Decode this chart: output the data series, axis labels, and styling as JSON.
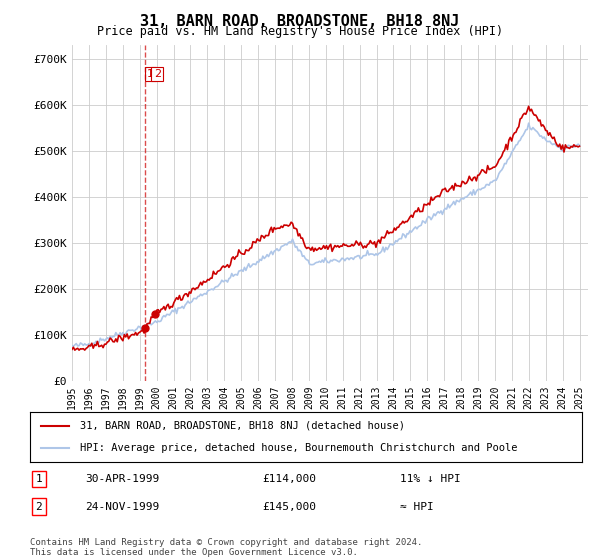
{
  "title": "31, BARN ROAD, BROADSTONE, BH18 8NJ",
  "subtitle": "Price paid vs. HM Land Registry's House Price Index (HPI)",
  "ylabel_ticks": [
    "£0",
    "£100K",
    "£200K",
    "£300K",
    "£400K",
    "£500K",
    "£600K",
    "£700K"
  ],
  "ytick_values": [
    0,
    100000,
    200000,
    300000,
    400000,
    500000,
    600000,
    700000
  ],
  "ylim": [
    0,
    730000
  ],
  "xlim_start": 1995.0,
  "xlim_end": 2025.5,
  "xticks": [
    1995,
    1996,
    1997,
    1998,
    1999,
    2000,
    2001,
    2002,
    2003,
    2004,
    2005,
    2006,
    2007,
    2008,
    2009,
    2010,
    2011,
    2012,
    2013,
    2014,
    2015,
    2016,
    2017,
    2018,
    2019,
    2020,
    2021,
    2022,
    2023,
    2024,
    2025
  ],
  "hpi_color": "#aec6e8",
  "price_color": "#cc0000",
  "dot_color": "#cc0000",
  "marker_box_color": "#cc0000",
  "background_color": "#ffffff",
  "grid_color": "#cccccc",
  "legend_label_red": "31, BARN ROAD, BROADSTONE, BH18 8NJ (detached house)",
  "legend_label_blue": "HPI: Average price, detached house, Bournemouth Christchurch and Poole",
  "transaction1_label": "1",
  "transaction1_date": "30-APR-1999",
  "transaction1_price": "£114,000",
  "transaction1_note": "11% ↓ HPI",
  "transaction2_label": "2",
  "transaction2_date": "24-NOV-1999",
  "transaction2_price": "£145,000",
  "transaction2_note": "≈ HPI",
  "footer": "Contains HM Land Registry data © Crown copyright and database right 2024.\nThis data is licensed under the Open Government Licence v3.0.",
  "dashed_vline_x": 1999.33,
  "dot1_x": 1999.33,
  "dot1_y": 114000,
  "dot2_x": 1999.9,
  "dot2_y": 145000,
  "marker1_x": 1999.33,
  "marker2_x": 1999.9
}
